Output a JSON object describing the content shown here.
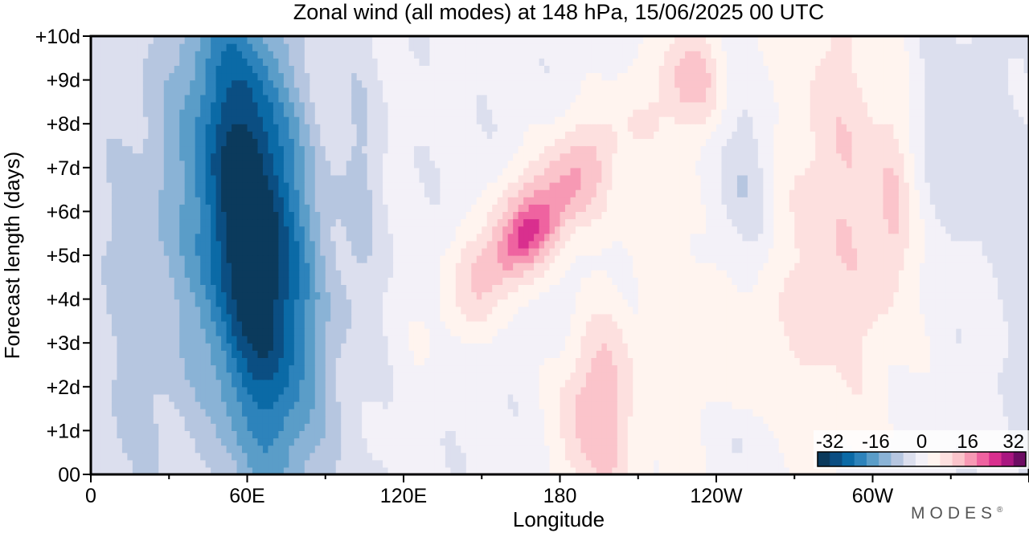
{
  "chart_data": {
    "type": "heatmap",
    "title": "Zonal wind (all modes) at 148 hPa,  15/06/2025  00 UTC",
    "xlabel": "Longitude",
    "ylabel": "Forecast length (days)",
    "x_ticks": [
      "0",
      "60E",
      "120E",
      "180",
      "120W",
      "60W"
    ],
    "y_ticks": [
      "00",
      "+1d",
      "+2d",
      "+3d",
      "+4d",
      "+5d",
      "+6d",
      "+7d",
      "+8d",
      "+9d",
      "+10d"
    ],
    "xlim_deg": [
      0,
      360
    ],
    "ylim_days": [
      0,
      10
    ],
    "colorbar": {
      "ticks": [
        "-32",
        "-16",
        "0",
        "16",
        "32"
      ],
      "range": [
        -32,
        32
      ],
      "step": 4,
      "colors": [
        "#0b3a5c",
        "#0b4e82",
        "#0b6aa6",
        "#2d83bb",
        "#5a9dc8",
        "#8ab3d6",
        "#b6c6e0",
        "#dcdfee",
        "#f3f1f8",
        "#fff4ef",
        "#fde0df",
        "#fbc4cb",
        "#f799b4",
        "#ef63a0",
        "#d92f8e",
        "#a91680",
        "#6d0c63"
      ]
    },
    "brand": "MODES",
    "brand_mark": "®",
    "fields": {
      "base": -3,
      "features": [
        {
          "lon": 62,
          "day": 5.5,
          "slon": 22,
          "sday": 5.5,
          "amp": -36,
          "tilt": -1.5
        },
        {
          "lon": 20,
          "day": 4.0,
          "slon": 22,
          "sday": 6.0,
          "amp": -7,
          "tilt": 0
        },
        {
          "lon": 103,
          "day": 6.5,
          "slon": 9,
          "sday": 4.0,
          "amp": -5,
          "tilt": 0
        },
        {
          "lon": 170,
          "day": 5.8,
          "slon": 20,
          "sday": 2.2,
          "amp": 17,
          "tilt": 11
        },
        {
          "lon": 168,
          "day": 5.5,
          "slon": 9,
          "sday": 0.8,
          "amp": 7,
          "tilt": 11
        },
        {
          "lon": 193,
          "day": 1.6,
          "slon": 14,
          "sday": 2.6,
          "amp": 13,
          "tilt": 0
        },
        {
          "lon": 230,
          "day": 9.0,
          "slon": 12,
          "sday": 1.2,
          "amp": 11,
          "tilt": 0
        },
        {
          "lon": 292,
          "day": 6.8,
          "slon": 26,
          "sday": 5.5,
          "amp": 9,
          "tilt": 0
        },
        {
          "lon": 308,
          "day": 6.0,
          "slon": 6,
          "sday": 1.8,
          "amp": 6,
          "tilt": 0
        },
        {
          "lon": 250,
          "day": 6.5,
          "slon": 14,
          "sday": 2.2,
          "amp": -9,
          "tilt": 0
        },
        {
          "lon": 248,
          "day": 0.7,
          "slon": 12,
          "sday": 1.0,
          "amp": -6,
          "tilt": 0
        },
        {
          "lon": 330,
          "day": 8.0,
          "slon": 18,
          "sday": 2.5,
          "amp": -5,
          "tilt": 0
        },
        {
          "lon": 238,
          "day": 3.5,
          "slon": 50,
          "sday": 6.0,
          "amp": 6,
          "tilt": 0
        },
        {
          "lon": 190,
          "day": 4.0,
          "slon": 20,
          "sday": 2.0,
          "amp": -4,
          "tilt": 0
        }
      ]
    }
  }
}
